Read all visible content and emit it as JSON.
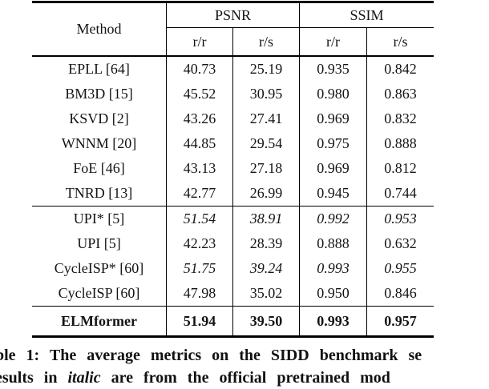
{
  "table": {
    "header": {
      "method": "Method",
      "groups": [
        {
          "label": "PSNR",
          "sub": [
            "r/r",
            "r/s"
          ]
        },
        {
          "label": "SSIM",
          "sub": [
            "r/r",
            "r/s"
          ]
        }
      ]
    },
    "sections": [
      {
        "rows": [
          {
            "method": "EPLL [64]",
            "values": [
              "40.73",
              "25.19",
              "0.935",
              "0.842"
            ],
            "style": "normal"
          },
          {
            "method": "BM3D [15]",
            "values": [
              "45.52",
              "30.95",
              "0.980",
              "0.863"
            ],
            "style": "normal"
          },
          {
            "method": "KSVD [2]",
            "values": [
              "43.26",
              "27.41",
              "0.969",
              "0.832"
            ],
            "style": "normal"
          },
          {
            "method": "WNNM [20]",
            "values": [
              "44.85",
              "29.54",
              "0.975",
              "0.888"
            ],
            "style": "normal"
          },
          {
            "method": "FoE [46]",
            "values": [
              "43.13",
              "27.18",
              "0.969",
              "0.812"
            ],
            "style": "normal"
          },
          {
            "method": "TNRD [13]",
            "values": [
              "42.77",
              "26.99",
              "0.945",
              "0.744"
            ],
            "style": "normal"
          }
        ]
      },
      {
        "rows": [
          {
            "method": "UPI* [5]",
            "values": [
              "51.54",
              "38.91",
              "0.992",
              "0.953"
            ],
            "style": "italic-values"
          },
          {
            "method": "UPI [5]",
            "values": [
              "42.23",
              "28.39",
              "0.888",
              "0.632"
            ],
            "style": "normal"
          },
          {
            "method": "CycleISP* [60]",
            "values": [
              "51.75",
              "39.24",
              "0.993",
              "0.955"
            ],
            "style": "italic-values"
          },
          {
            "method": "CycleISP [60]",
            "values": [
              "47.98",
              "35.02",
              "0.950",
              "0.846"
            ],
            "style": "normal"
          }
        ]
      },
      {
        "rows": [
          {
            "method": "ELMformer",
            "values": [
              "51.94",
              "39.50",
              "0.993",
              "0.957"
            ],
            "style": "bold"
          }
        ]
      }
    ]
  },
  "caption": {
    "line1": "ble 1: The average metrics on the SIDD benchmark se",
    "line2_prefix": "esults in ",
    "line2_italic": "italic",
    "line2_suffix": " are from the official pretrained mod"
  },
  "colors": {
    "text": "#141414",
    "rule": "#000000",
    "background": "#ffffff"
  }
}
